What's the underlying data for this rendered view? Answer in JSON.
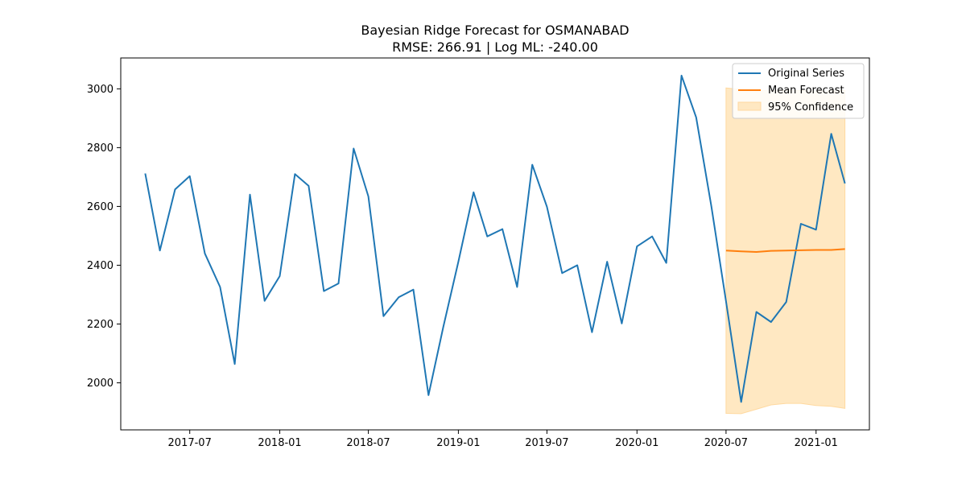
{
  "chart_data": {
    "type": "line",
    "title": "Bayesian Ridge Forecast for OSMANABAD",
    "subtitle": "RMSE: 266.91 | Log ML: -240.00",
    "xlabel": "",
    "ylabel": "",
    "x_range": [
      "2017-02-10",
      "2021-04-20"
    ],
    "ylim": [
      1840,
      3105
    ],
    "x_ticks": [
      "2017-07",
      "2018-01",
      "2018-07",
      "2019-01",
      "2019-07",
      "2020-01",
      "2020-07",
      "2021-01"
    ],
    "y_ticks": [
      2000,
      2200,
      2400,
      2600,
      2800,
      3000
    ],
    "grid": false,
    "legend_position": "top-right",
    "colors": {
      "original": "#1f77b4",
      "forecast": "#ff7f0e",
      "confidence": "#ffe8c2",
      "confidence_edge": "#ffd9a0"
    },
    "series": [
      {
        "name": "Original Series",
        "x": [
          "2017-04-01",
          "2017-05-01",
          "2017-06-01",
          "2017-07-01",
          "2017-08-01",
          "2017-09-01",
          "2017-10-01",
          "2017-11-01",
          "2017-12-01",
          "2018-01-01",
          "2018-02-01",
          "2018-03-01",
          "2018-04-01",
          "2018-05-01",
          "2018-06-01",
          "2018-07-01",
          "2018-08-01",
          "2018-09-01",
          "2018-10-01",
          "2018-11-01",
          "2018-12-01",
          "2019-01-01",
          "2019-02-01",
          "2019-03-01",
          "2019-04-01",
          "2019-05-01",
          "2019-06-01",
          "2019-07-01",
          "2019-08-01",
          "2019-09-01",
          "2019-10-01",
          "2019-11-01",
          "2019-12-01",
          "2020-01-01",
          "2020-02-01",
          "2020-03-01",
          "2020-04-01",
          "2020-05-01",
          "2020-06-01",
          "2020-07-01",
          "2020-08-01",
          "2020-09-01",
          "2020-10-01",
          "2020-11-01",
          "2020-12-01",
          "2021-01-01",
          "2021-02-01",
          "2021-03-01"
        ],
        "values": [
          2712,
          2450,
          2658,
          2703,
          2440,
          2326,
          2064,
          2640,
          2279,
          2363,
          2710,
          2670,
          2312,
          2338,
          2797,
          2634,
          2227,
          2291,
          2317,
          1958,
          2189,
          2412,
          2648,
          2498,
          2523,
          2326,
          2742,
          2599,
          2373,
          2400,
          2172,
          2412,
          2202,
          2464,
          2498,
          2408,
          3045,
          2903,
          2600,
          2277,
          1935,
          2241,
          2207,
          2275,
          2541,
          2521,
          2847,
          2678
        ]
      },
      {
        "name": "Mean Forecast",
        "x": [
          "2020-07-01",
          "2020-08-01",
          "2020-09-01",
          "2020-10-01",
          "2020-11-01",
          "2020-12-01",
          "2021-01-01",
          "2021-02-01",
          "2021-03-01"
        ],
        "values": [
          2450,
          2447,
          2445,
          2449,
          2450,
          2451,
          2452,
          2452,
          2455
        ]
      },
      {
        "name": "95% Confidence",
        "x": [
          "2020-07-01",
          "2020-08-01",
          "2020-09-01",
          "2020-10-01",
          "2020-11-01",
          "2020-12-01",
          "2021-01-01",
          "2021-02-01",
          "2021-03-01"
        ],
        "lower": [
          1896,
          1895,
          1910,
          1925,
          1930,
          1930,
          1923,
          1920,
          1913
        ],
        "upper": [
          3003,
          2998,
          2993,
          2995,
          2994,
          2994,
          2993,
          2993,
          2994
        ]
      }
    ]
  }
}
